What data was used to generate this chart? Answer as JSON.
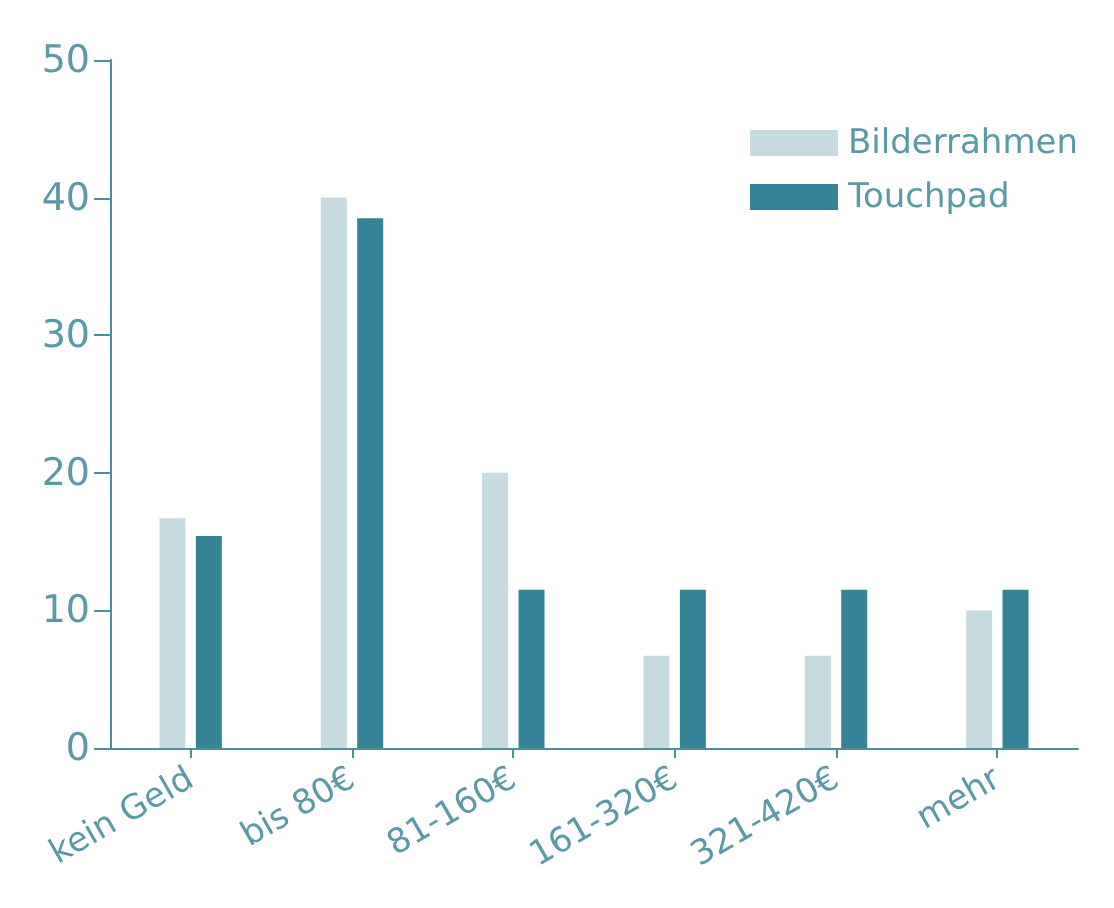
{
  "chart_data": {
    "type": "bar",
    "categories": [
      "kein Geld",
      "bis 80€",
      "81-160€",
      "161-320€",
      "321-420€",
      "mehr"
    ],
    "series": [
      {
        "name": "Bilderrahmen",
        "color": "#c5dbe0",
        "values": [
          16.7,
          40,
          20,
          6.7,
          6.7,
          10
        ]
      },
      {
        "name": "Touchpad",
        "color": "#358396",
        "values": [
          15.4,
          38.5,
          11.5,
          11.5,
          11.5,
          11.5
        ]
      }
    ],
    "ylim": [
      0,
      50
    ],
    "yticks": [
      0,
      10,
      20,
      30,
      40,
      50
    ],
    "grid": false,
    "legend": "top right"
  }
}
